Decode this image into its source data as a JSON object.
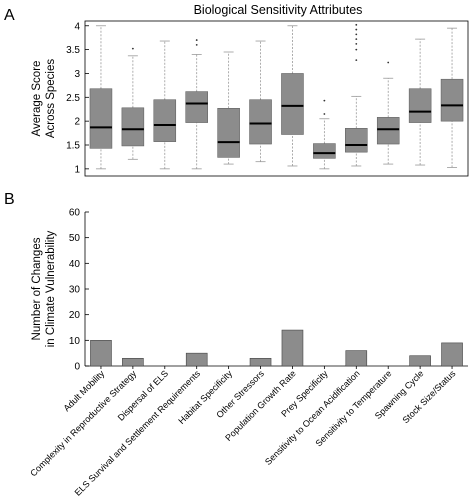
{
  "figure": {
    "title": "Biological Sensitivity Attributes",
    "panel_a_letter": "A",
    "panel_b_letter": "B"
  },
  "colors": {
    "box_fill": "#8c8c8c",
    "bar_fill": "#8c8c8c",
    "axis": "#000000",
    "median": "#000000",
    "whisker": "#999999"
  },
  "chart_data": [
    {
      "type": "box",
      "ylabel_lines": [
        "Average Score",
        "Across Species"
      ],
      "ylim": [
        0.85,
        4.1
      ],
      "yticks": [
        1,
        1.5,
        2,
        2.5,
        3,
        3.5,
        4
      ],
      "ytick_labels": [
        "1",
        "1.5",
        "2",
        "2.5",
        "3",
        "3.5",
        "4"
      ],
      "grid": false,
      "categories": [
        "Adult Mobility",
        "Complexity in Reproductive Strategy",
        "Dispersal of ELS",
        "ELS Survival and Settlement Requirements",
        "Habitat Specificity",
        "Other Stressors",
        "Population Growth Rate",
        "Prey Specificity",
        "Sensitivity to Ocean Acidification",
        "Sensitivity to Temperature",
        "Spawning Cycle",
        "Stock Size/Status"
      ],
      "boxes": [
        {
          "min": 1.0,
          "q1": 1.43,
          "median": 1.87,
          "q3": 2.68,
          "max": 4.0,
          "outliers": []
        },
        {
          "min": 1.2,
          "q1": 1.48,
          "median": 1.83,
          "q3": 2.28,
          "max": 3.37,
          "outliers": [
            3.52
          ]
        },
        {
          "min": 1.0,
          "q1": 1.57,
          "median": 1.92,
          "q3": 2.45,
          "max": 3.68,
          "outliers": []
        },
        {
          "min": 1.0,
          "q1": 1.97,
          "median": 2.37,
          "q3": 2.62,
          "max": 3.4,
          "outliers": [
            3.6,
            3.7
          ]
        },
        {
          "min": 1.1,
          "q1": 1.24,
          "median": 1.56,
          "q3": 2.27,
          "max": 3.45,
          "outliers": []
        },
        {
          "min": 1.15,
          "q1": 1.52,
          "median": 1.95,
          "q3": 2.45,
          "max": 3.68,
          "outliers": []
        },
        {
          "min": 1.06,
          "q1": 1.72,
          "median": 2.32,
          "q3": 3.0,
          "max": 4.0,
          "outliers": []
        },
        {
          "min": 1.0,
          "q1": 1.22,
          "median": 1.33,
          "q3": 1.53,
          "max": 2.05,
          "outliers": [
            2.15,
            2.43
          ]
        },
        {
          "min": 1.06,
          "q1": 1.35,
          "median": 1.5,
          "q3": 1.85,
          "max": 2.52,
          "outliers": [
            3.28,
            3.5,
            3.62,
            3.72,
            3.82,
            3.92,
            4.02
          ]
        },
        {
          "min": 1.1,
          "q1": 1.52,
          "median": 1.83,
          "q3": 2.08,
          "max": 2.9,
          "outliers": [
            3.23
          ]
        },
        {
          "min": 1.08,
          "q1": 1.97,
          "median": 2.2,
          "q3": 2.68,
          "max": 3.72,
          "outliers": []
        },
        {
          "min": 1.03,
          "q1": 2.0,
          "median": 2.33,
          "q3": 2.88,
          "max": 3.95,
          "outliers": []
        }
      ]
    },
    {
      "type": "bar",
      "ylabel_lines": [
        "Number of Changes",
        "in Climate Vulnerability"
      ],
      "ylim": [
        0,
        60
      ],
      "yticks": [
        0,
        10,
        20,
        30,
        40,
        50,
        60
      ],
      "ytick_labels": [
        "0",
        "10",
        "20",
        "30",
        "40",
        "50",
        "60"
      ],
      "grid": false,
      "categories": [
        "Adult Mobility",
        "Complexity in Reproductive Strategy",
        "Dispersal of ELS",
        "ELS Survival and Settlement Requirements",
        "Habitat Specificity",
        "Other Stressors",
        "Population Growth Rate",
        "Prey Specificity",
        "Sensitivity to Ocean Acidification",
        "Sensitivity to Temperature",
        "Spawning Cycle",
        "Stock Size/Status"
      ],
      "values": [
        10,
        3,
        0,
        5,
        0,
        3,
        14,
        0,
        6,
        0,
        4,
        9
      ]
    }
  ]
}
